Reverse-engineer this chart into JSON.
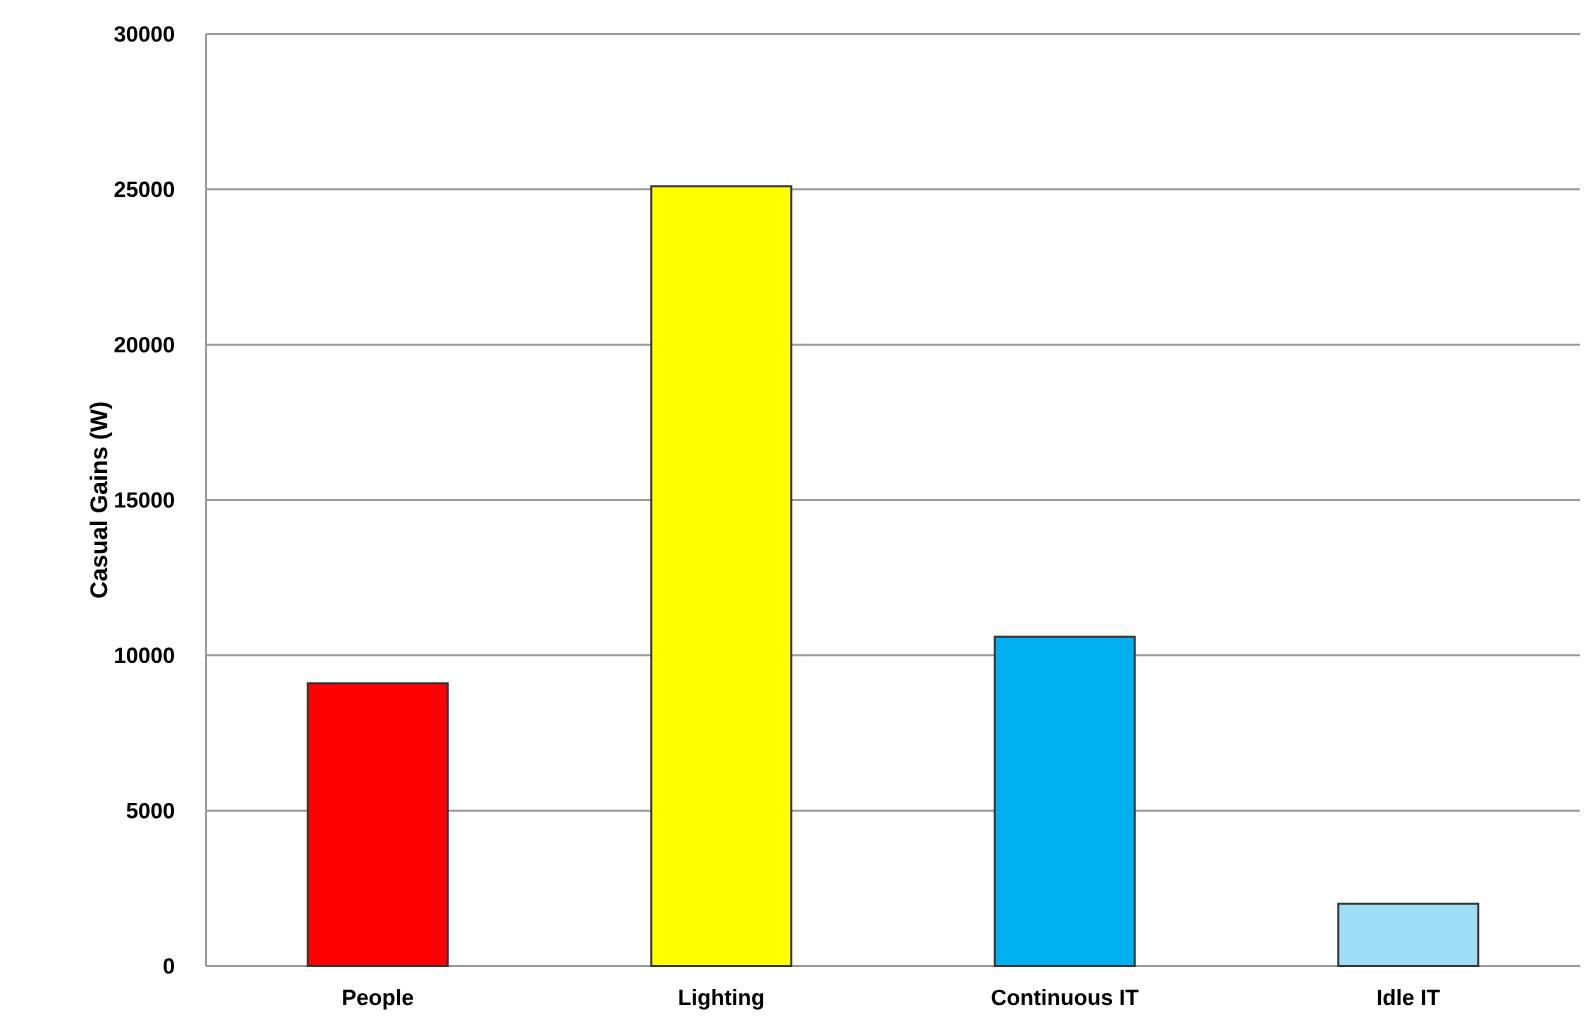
{
  "chart_data": {
    "type": "bar",
    "ylabel": "Casual Gains (W)",
    "categories": [
      "People",
      "Lighting",
      "Continuous IT",
      "Idle IT"
    ],
    "values": [
      9100,
      25100,
      10600,
      2000
    ],
    "colors": [
      "#ff0000",
      "#ffff00",
      "#00b0f0",
      "#9fdcf5"
    ],
    "ylim": [
      0,
      30000
    ],
    "yticks": [
      0,
      5000,
      10000,
      15000,
      20000,
      25000,
      30000
    ],
    "grid": "y"
  }
}
